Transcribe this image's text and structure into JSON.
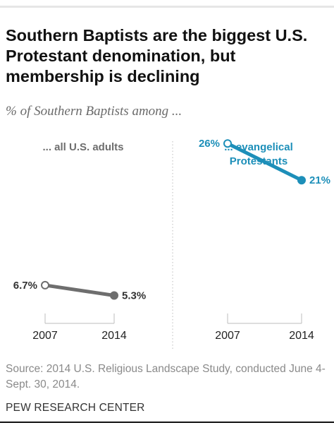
{
  "title": "Southern Baptists are the biggest U.S. Protestant denomination, but membership is declining",
  "subtitle": "% of Southern Baptists among ...",
  "source": "Source: 2014 U.S. Religious Landscape Study, conducted June 4-Sept. 30, 2014.",
  "organization": "PEW RESEARCH CENTER",
  "chart_data": [
    {
      "type": "line",
      "title": "... all U.S. adults",
      "x": [
        "2007",
        "2014"
      ],
      "values": [
        6.7,
        5.3
      ],
      "value_labels": [
        "6.7%",
        "5.3%"
      ],
      "color": "#6e6e6e",
      "ylim": [
        0,
        30
      ]
    },
    {
      "type": "line",
      "title": "... evangelical Protestants",
      "title_lines": [
        "... evangelical",
        "Protestants"
      ],
      "x": [
        "2007",
        "2014"
      ],
      "values": [
        26,
        21
      ],
      "value_labels": [
        "26%",
        "21%"
      ],
      "color": "#1d8fb9",
      "ylim": [
        0,
        30
      ]
    }
  ]
}
